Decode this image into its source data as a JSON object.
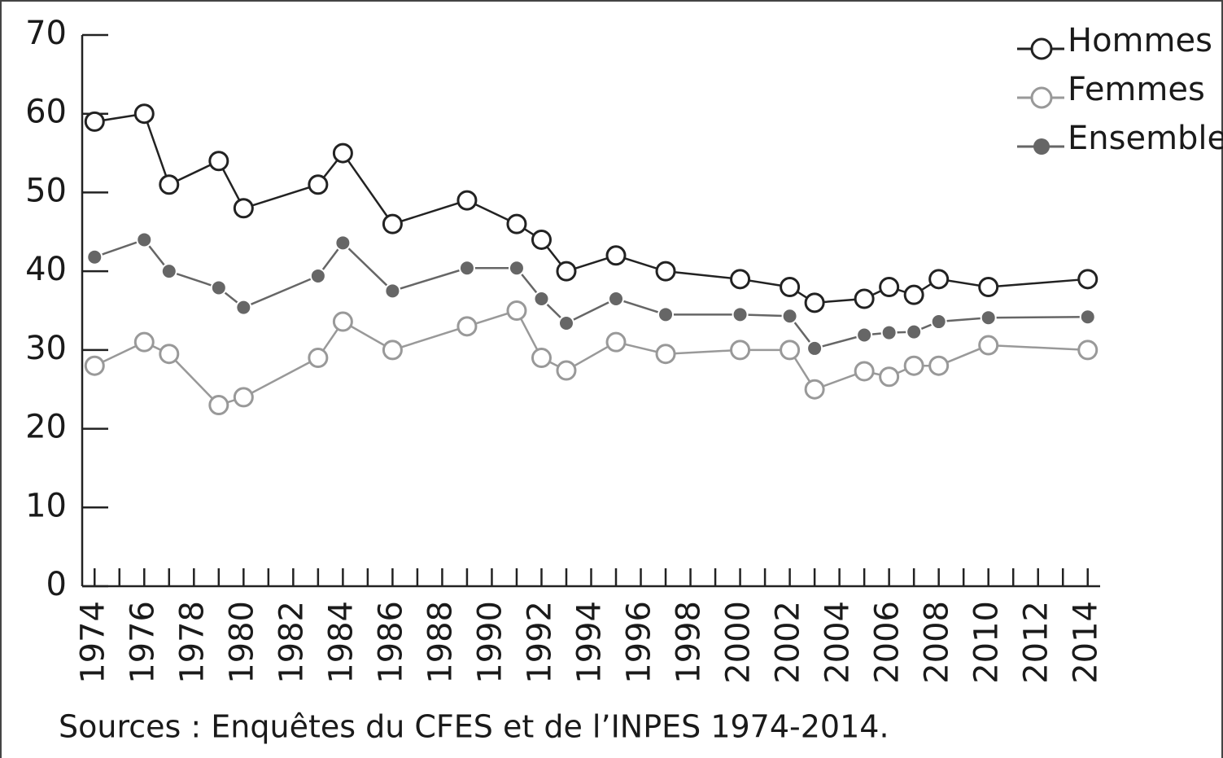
{
  "chart_data": {
    "type": "line",
    "x": [
      1974,
      1976,
      1977,
      1979,
      1980,
      1983,
      1984,
      1986,
      1989,
      1991,
      1992,
      1993,
      1995,
      1997,
      2000,
      2002,
      2003,
      2005,
      2006,
      2007,
      2008,
      2010,
      2014
    ],
    "series": [
      {
        "name": "Hommes",
        "color": "#222222",
        "marker": "open",
        "values": [
          59,
          60,
          51,
          54,
          48,
          51,
          55,
          46,
          49,
          46,
          44,
          40,
          42,
          40,
          39,
          38,
          36,
          36.5,
          38,
          37,
          39,
          38,
          39
        ]
      },
      {
        "name": "Femmes",
        "color": "#999999",
        "marker": "open",
        "values": [
          28,
          31,
          29.5,
          23,
          24,
          29,
          33.6,
          30,
          33,
          35,
          29,
          27.4,
          31,
          29.5,
          30,
          30,
          25,
          27.3,
          26.6,
          28,
          28,
          30.6,
          30
        ]
      },
      {
        "name": "Ensemble",
        "color": "#666666",
        "marker": "filled",
        "values": [
          41.8,
          44,
          40,
          37.9,
          35.4,
          39.4,
          43.6,
          37.5,
          40.4,
          40.4,
          36.5,
          33.4,
          36.5,
          34.5,
          34.5,
          34.3,
          30.2,
          31.9,
          32.2,
          32.3,
          33.6,
          34.1,
          34.2
        ]
      }
    ],
    "xlim": [
      1973.5,
      2014.5
    ],
    "xticks": [
      1974,
      1976,
      1978,
      1980,
      1982,
      1984,
      1986,
      1988,
      1990,
      1992,
      1994,
      1996,
      1998,
      2000,
      2002,
      2004,
      2006,
      2008,
      2010,
      2012,
      2014
    ],
    "ylim": [
      0,
      70
    ],
    "yticks": [
      0,
      10,
      20,
      30,
      40,
      50,
      60,
      70
    ],
    "legend": "top-right",
    "source": "Sources : Enquêtes du CFES et de l’INPES 1974-2014."
  }
}
